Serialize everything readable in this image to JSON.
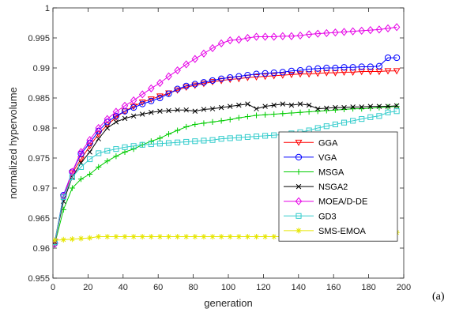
{
  "panel_label": "(a)",
  "chart_data": {
    "type": "line",
    "xlabel": "generation",
    "ylabel": "normalized hypervolume",
    "xlim": [
      0,
      200
    ],
    "ylim": [
      0.955,
      1.0
    ],
    "xticks": [
      0,
      20,
      40,
      60,
      80,
      100,
      120,
      140,
      160,
      180,
      200
    ],
    "yticks": [
      0.955,
      0.96,
      0.965,
      0.97,
      0.975,
      0.98,
      0.985,
      0.99,
      0.995,
      1
    ],
    "ytick_labels": [
      "0.955",
      "0.96",
      "0.965",
      "0.97",
      "0.975",
      "0.98",
      "0.985",
      "0.99",
      "0.995",
      "1"
    ],
    "grid": false,
    "legend_position": "lower-right",
    "x": [
      1,
      6,
      11,
      16,
      21,
      26,
      31,
      36,
      41,
      46,
      51,
      56,
      61,
      66,
      71,
      76,
      81,
      86,
      91,
      96,
      101,
      106,
      111,
      116,
      121,
      126,
      131,
      136,
      141,
      146,
      151,
      156,
      161,
      166,
      171,
      176,
      181,
      186,
      191,
      196
    ],
    "series": [
      {
        "name": "GGA",
        "color": "#ff0000",
        "marker": "triangle-down",
        "values": [
          0.9611,
          0.9685,
          0.9725,
          0.9748,
          0.977,
          0.979,
          0.9805,
          0.9818,
          0.9828,
          0.9836,
          0.9843,
          0.9848,
          0.9853,
          0.9858,
          0.9863,
          0.9868,
          0.9871,
          0.9874,
          0.9877,
          0.9879,
          0.9881,
          0.9882,
          0.9884,
          0.9885,
          0.9886,
          0.9887,
          0.9888,
          0.9889,
          0.989,
          0.989,
          0.9891,
          0.9892,
          0.9892,
          0.9893,
          0.9893,
          0.9894,
          0.9894,
          0.9894,
          0.9895,
          0.9895
        ]
      },
      {
        "name": "VGA",
        "color": "#0000ff",
        "marker": "circle",
        "values": [
          0.9608,
          0.9688,
          0.9727,
          0.9757,
          0.9775,
          0.9795,
          0.981,
          0.982,
          0.9828,
          0.9834,
          0.984,
          0.9845,
          0.985,
          0.9857,
          0.9865,
          0.987,
          0.9873,
          0.9876,
          0.9879,
          0.9882,
          0.9884,
          0.9886,
          0.9888,
          0.989,
          0.9891,
          0.9892,
          0.9893,
          0.9895,
          0.9896,
          0.9898,
          0.9899,
          0.99,
          0.99,
          0.9901,
          0.9901,
          0.9902,
          0.9902,
          0.9903,
          0.9917,
          0.9917
        ]
      },
      {
        "name": "MSGA",
        "color": "#00cc00",
        "marker": "plus",
        "values": [
          0.9606,
          0.9664,
          0.97,
          0.9715,
          0.9723,
          0.9735,
          0.9745,
          0.9753,
          0.976,
          0.9765,
          0.9772,
          0.9778,
          0.9783,
          0.979,
          0.9796,
          0.9802,
          0.9806,
          0.9808,
          0.981,
          0.9812,
          0.9814,
          0.9817,
          0.9819,
          0.9821,
          0.9822,
          0.9823,
          0.9824,
          0.9825,
          0.9826,
          0.9827,
          0.9828,
          0.9829,
          0.983,
          0.9831,
          0.9832,
          0.9832,
          0.9833,
          0.9834,
          0.9835,
          0.9836
        ]
      },
      {
        "name": "NSGA2",
        "color": "#000000",
        "marker": "x",
        "values": [
          0.961,
          0.9678,
          0.9718,
          0.9742,
          0.976,
          0.9782,
          0.98,
          0.981,
          0.9816,
          0.982,
          0.9823,
          0.9826,
          0.9828,
          0.9829,
          0.983,
          0.983,
          0.9828,
          0.9831,
          0.9832,
          0.9834,
          0.9836,
          0.9838,
          0.984,
          0.9832,
          0.9836,
          0.9838,
          0.984,
          0.9838,
          0.984,
          0.9838,
          0.9832,
          0.9833,
          0.9834,
          0.9834,
          0.9835,
          0.9835,
          0.9836,
          0.9836,
          0.9836,
          0.9837
        ]
      },
      {
        "name": "MOEA/D-DE",
        "color": "#e600e6",
        "marker": "diamond",
        "values": [
          0.9607,
          0.9686,
          0.9727,
          0.976,
          0.978,
          0.98,
          0.9815,
          0.9827,
          0.9837,
          0.9846,
          0.9856,
          0.9866,
          0.9875,
          0.9886,
          0.9896,
          0.9906,
          0.9915,
          0.9924,
          0.9933,
          0.9941,
          0.9946,
          0.9947,
          0.995,
          0.9952,
          0.9952,
          0.9952,
          0.9953,
          0.9953,
          0.9954,
          0.9956,
          0.9957,
          0.9958,
          0.9959,
          0.996,
          0.9961,
          0.9962,
          0.9963,
          0.9964,
          0.9966,
          0.9968
        ]
      },
      {
        "name": "GD3",
        "color": "#33cccc",
        "marker": "square",
        "values": [
          0.961,
          0.9685,
          0.9718,
          0.9735,
          0.9748,
          0.9758,
          0.9762,
          0.9765,
          0.9768,
          0.977,
          0.9772,
          0.9773,
          0.9774,
          0.9775,
          0.9776,
          0.9777,
          0.9778,
          0.9779,
          0.978,
          0.9782,
          0.9783,
          0.9784,
          0.9785,
          0.9786,
          0.9787,
          0.9788,
          0.9789,
          0.9791,
          0.9793,
          0.9796,
          0.98,
          0.9803,
          0.9806,
          0.9809,
          0.9812,
          0.9815,
          0.9818,
          0.982,
          0.9826,
          0.9828
        ]
      },
      {
        "name": "SMS-EMOA",
        "color": "#e6e600",
        "marker": "star",
        "values": [
          0.9613,
          0.9614,
          0.9615,
          0.9616,
          0.9617,
          0.9619,
          0.9619,
          0.9619,
          0.9619,
          0.9619,
          0.9619,
          0.9619,
          0.9619,
          0.9619,
          0.9619,
          0.9619,
          0.9619,
          0.9619,
          0.9619,
          0.9619,
          0.9619,
          0.9619,
          0.9619,
          0.9619,
          0.9619,
          0.9619,
          0.9619,
          0.9619,
          0.9619,
          0.9619,
          0.9619,
          0.9619,
          0.9619,
          0.9619,
          0.9619,
          0.9619,
          0.9619,
          0.9619,
          0.9626,
          0.9626
        ]
      }
    ]
  }
}
